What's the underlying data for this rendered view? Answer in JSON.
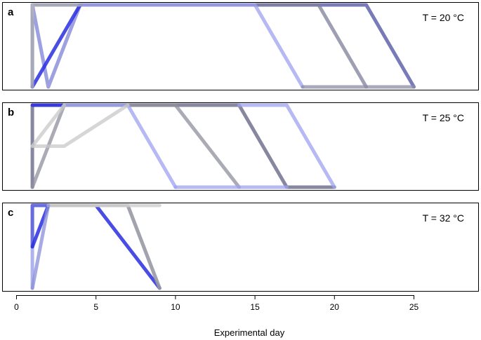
{
  "chart_data": {
    "type": "line",
    "xlabel": "Experimental day",
    "xlim": [
      0,
      29
    ],
    "xticks": [
      0,
      5,
      10,
      15,
      20,
      25
    ],
    "ylim": [
      0,
      1
    ],
    "panels": [
      {
        "tag": "a",
        "temperature_label": "T = 20 °C",
        "series": [
          {
            "color": "#4b4fa0",
            "opacity": 0.75,
            "x": [
              1,
              1,
              4,
              22,
              25
            ],
            "y": [
              0,
              1,
              1,
              1,
              0
            ]
          },
          {
            "color": "#7f7f9a",
            "opacity": 0.75,
            "x": [
              1,
              2,
              4,
              19,
              22
            ],
            "y": [
              1,
              0,
              1,
              1,
              0
            ]
          },
          {
            "color": "#9da2f0",
            "opacity": 0.75,
            "x": [
              1,
              2,
              4,
              15,
              18
            ],
            "y": [
              1,
              0,
              1,
              1,
              0
            ]
          },
          {
            "color": "#2a2ee0",
            "opacity": 0.85,
            "x": [
              1,
              4
            ],
            "y": [
              0,
              1
            ]
          },
          {
            "color": "#b8b8b8",
            "opacity": 0.75,
            "x": [
              1,
              1,
              4
            ],
            "y": [
              0,
              1,
              1
            ]
          },
          {
            "color": "#8c8ca8",
            "opacity": 0.75,
            "x": [
              18,
              22,
              25
            ],
            "y": [
              0,
              0,
              0
            ]
          }
        ]
      },
      {
        "tag": "b",
        "temperature_label": "T = 25 °C",
        "series": [
          {
            "color": "#5f5f80",
            "opacity": 0.75,
            "x": [
              1,
              1,
              3,
              14,
              17,
              20
            ],
            "y": [
              0,
              1,
              1,
              1,
              0,
              0
            ]
          },
          {
            "color": "#2a2ee0",
            "opacity": 0.85,
            "x": [
              1,
              3
            ],
            "y": [
              1,
              1
            ]
          },
          {
            "color": "#8f8f9e",
            "opacity": 0.75,
            "x": [
              1,
              3,
              10,
              14
            ],
            "y": [
              0,
              1,
              1,
              0
            ]
          },
          {
            "color": "#9da2f0",
            "opacity": 0.75,
            "x": [
              3,
              7,
              10
            ],
            "y": [
              1,
              1,
              0
            ]
          },
          {
            "color": "#9da2f0",
            "opacity": 0.75,
            "x": [
              14,
              17,
              20
            ],
            "y": [
              1,
              1,
              0
            ]
          },
          {
            "color": "#c8c8c8",
            "opacity": 0.75,
            "x": [
              1,
              3,
              7
            ],
            "y": [
              0.5,
              0.5,
              1
            ]
          },
          {
            "color": "#c8c8c8",
            "opacity": 0.75,
            "x": [
              1,
              3
            ],
            "y": [
              0.5,
              1
            ]
          },
          {
            "color": "#9da2f0",
            "opacity": 0.75,
            "x": [
              10,
              14,
              17
            ],
            "y": [
              0,
              0,
              0
            ]
          }
        ]
      },
      {
        "tag": "c",
        "temperature_label": "T = 32 °C",
        "series": [
          {
            "color": "#9aa0e8",
            "opacity": 0.8,
            "x": [
              1,
              1,
              2,
              5,
              7,
              9
            ],
            "y": [
              0,
              1,
              1,
              1,
              1,
              0
            ]
          },
          {
            "color": "#5b60d8",
            "opacity": 0.85,
            "x": [
              1,
              1,
              2
            ],
            "y": [
              0.5,
              1,
              1
            ]
          },
          {
            "color": "#2a2ee0",
            "opacity": 0.85,
            "x": [
              1,
              2,
              5,
              9
            ],
            "y": [
              0.5,
              1,
              1,
              0
            ]
          },
          {
            "color": "#a0a0a0",
            "opacity": 0.85,
            "x": [
              2,
              7,
              9
            ],
            "y": [
              1,
              1,
              0
            ]
          },
          {
            "color": "#d0d0d0",
            "opacity": 0.85,
            "x": [
              2,
              9
            ],
            "y": [
              1,
              1
            ]
          },
          {
            "color": "#8a8fd8",
            "opacity": 0.75,
            "x": [
              1,
              2
            ],
            "y": [
              0,
              1
            ]
          }
        ]
      }
    ]
  }
}
